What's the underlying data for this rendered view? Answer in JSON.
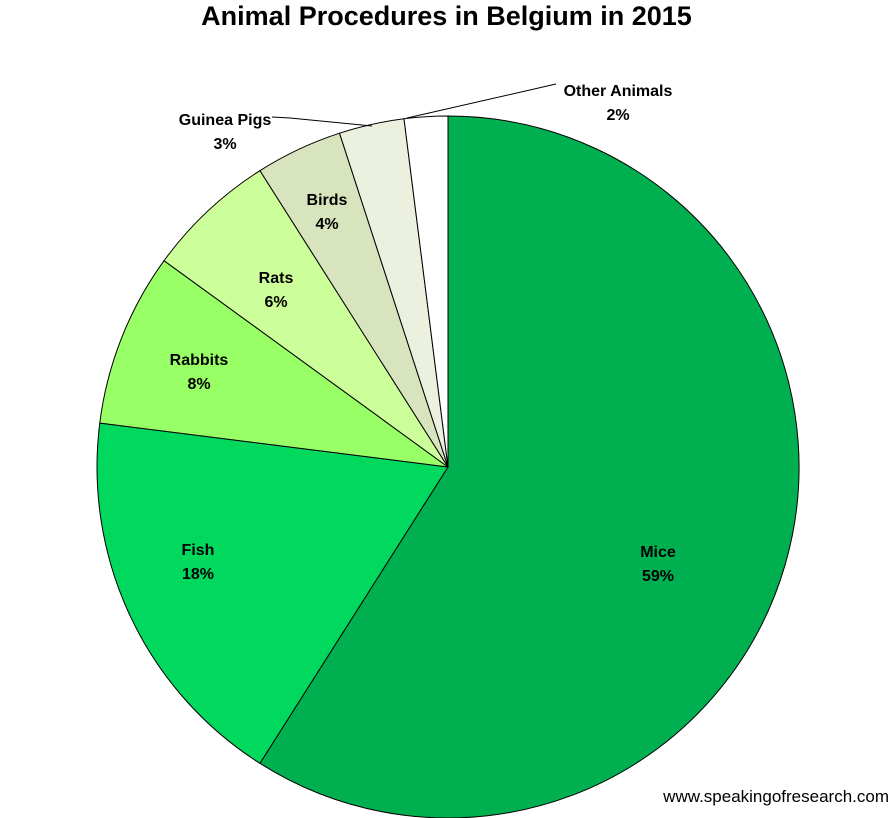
{
  "chart_data": {
    "type": "pie",
    "title": "Animal Procedures in Belgium in 2015",
    "start": "top, clockwise",
    "slices": [
      {
        "label": "Mice",
        "value": 59,
        "value_label": "59%",
        "color": "#00B050"
      },
      {
        "label": "Fish",
        "value": 18,
        "value_label": "18%",
        "color": "#00D95E"
      },
      {
        "label": "Rabbits",
        "value": 8,
        "value_label": "8%",
        "color": "#99FF66"
      },
      {
        "label": "Rats",
        "value": 6,
        "value_label": "6%",
        "color": "#CCFF99"
      },
      {
        "label": "Birds",
        "value": 4,
        "value_label": "4%",
        "color": "#D7E4BD"
      },
      {
        "label": "Guinea Pigs",
        "value": 3,
        "value_label": "3%",
        "color": "#EBF1DE"
      },
      {
        "label": "Other Animals",
        "value": 2,
        "value_label": "2%",
        "color": "#FFFFFF"
      }
    ]
  },
  "watermark": "www.speakingofresearch.com"
}
